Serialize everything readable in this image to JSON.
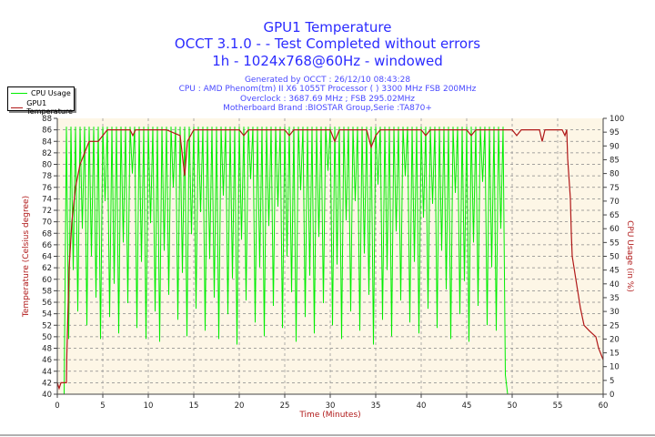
{
  "header": {
    "title": "GPU1 Temperature",
    "subtitle1": "OCCT 3.1.0 -  - Test Completed without errors",
    "subtitle2": "1h - 1024x768@60Hz - windowed",
    "info": [
      "Generated by OCCT : 26/12/10 08:43:28",
      "CPU : AMD Phenom(tm) II X6 1055T Processor (  ) 3300 MHz FSB 200MHz",
      "Overclock : 3687.69 MHz ; FSB 295.02MHz",
      "Motherboard Brand :BIOSTAR Group,Serie :TA870+"
    ]
  },
  "chart_data": {
    "type": "line",
    "xlabel": "Time (Minutes)",
    "ylabel": "Temperature (Celsius degree)",
    "y2label": "CPU Usage (in %)",
    "xlim": [
      0,
      60
    ],
    "ylim": [
      40,
      88
    ],
    "y2lim": [
      0,
      100
    ],
    "xticks": [
      0,
      5,
      10,
      15,
      20,
      25,
      30,
      35,
      40,
      45,
      50,
      55,
      60
    ],
    "yticks": [
      40,
      42,
      44,
      46,
      48,
      50,
      52,
      54,
      56,
      58,
      60,
      62,
      64,
      66,
      68,
      70,
      72,
      74,
      76,
      78,
      80,
      82,
      84,
      86,
      88
    ],
    "y2ticks": [
      0,
      5,
      10,
      15,
      20,
      25,
      30,
      35,
      40,
      45,
      50,
      55,
      60,
      65,
      70,
      75,
      80,
      85,
      90,
      95,
      100
    ],
    "grid": true,
    "legend_position": "top-left",
    "colors": {
      "cpu": "#00ee00",
      "temp": "#b01818",
      "plot_bg": "#fdf6e6",
      "title": "#2b2bff"
    },
    "series": [
      {
        "name": "CPU Usage",
        "axis": "right",
        "x_start": 0,
        "x_step": 0.25,
        "values": [
          0,
          0,
          0,
          0,
          97,
          20,
          97,
          45,
          97,
          30,
          97,
          60,
          97,
          25,
          97,
          50,
          97,
          35,
          97,
          20,
          97,
          70,
          97,
          28,
          97,
          40,
          97,
          22,
          97,
          55,
          97,
          33,
          97,
          80,
          97,
          24,
          97,
          48,
          97,
          20,
          97,
          62,
          97,
          30,
          97,
          19,
          97,
          52,
          97,
          36,
          97,
          75,
          97,
          27,
          97,
          44,
          97,
          21,
          97,
          58,
          97,
          31,
          97,
          66,
          97,
          23,
          97,
          49,
          97,
          35,
          97,
          20,
          97,
          72,
          97,
          29,
          97,
          42,
          97,
          18,
          97,
          56,
          97,
          34,
          97,
          78,
          97,
          26,
          97,
          46,
          97,
          21,
          97,
          61,
          97,
          32,
          97,
          68,
          97,
          24,
          97,
          50,
          97,
          37,
          97,
          19,
          97,
          74,
          97,
          28,
          97,
          43,
          97,
          22,
          97,
          57,
          97,
          33,
          97,
          81,
          97,
          25,
          97,
          47,
          97,
          20,
          97,
          63,
          97,
          30,
          97,
          70,
          97,
          23,
          97,
          51,
          97,
          36,
          97,
          18,
          97,
          76,
          97,
          27,
          97,
          45,
          97,
          21,
          97,
          59,
          97,
          34,
          97,
          79,
          97,
          26,
          97,
          48,
          97,
          22,
          97,
          64,
          97,
          31,
          97,
          69,
          97,
          24,
          97,
          52,
          97,
          38,
          97,
          20,
          97,
          73,
          97,
          29,
          97,
          41,
          97,
          19,
          97,
          55,
          97,
          32,
          97,
          77,
          97,
          25,
          97,
          46,
          97,
          23,
          97,
          60,
          97,
          7,
          0,
          0,
          0,
          0,
          0,
          0,
          0,
          0,
          0,
          0,
          0,
          0,
          0,
          0,
          0,
          0
        ]
      },
      {
        "name": "GPU1 Temperature",
        "axis": "left",
        "points": [
          [
            0,
            42
          ],
          [
            0.2,
            41
          ],
          [
            0.4,
            42
          ],
          [
            1.0,
            42
          ],
          [
            1.05,
            47
          ],
          [
            1.3,
            62
          ],
          [
            1.6,
            70
          ],
          [
            2,
            76
          ],
          [
            2.5,
            80
          ],
          [
            3,
            82
          ],
          [
            3.5,
            84
          ],
          [
            4.5,
            84
          ],
          [
            5,
            85
          ],
          [
            5.5,
            86
          ],
          [
            8,
            86
          ],
          [
            8.3,
            85
          ],
          [
            8.6,
            86
          ],
          [
            12,
            86
          ],
          [
            13.5,
            85
          ],
          [
            14,
            78
          ],
          [
            14.3,
            84
          ],
          [
            15,
            86
          ],
          [
            20,
            86
          ],
          [
            20.5,
            85
          ],
          [
            21,
            86
          ],
          [
            25,
            86
          ],
          [
            25.5,
            85
          ],
          [
            26,
            86
          ],
          [
            30,
            86
          ],
          [
            30.5,
            84
          ],
          [
            31,
            86
          ],
          [
            34,
            86
          ],
          [
            34.5,
            83
          ],
          [
            35,
            85
          ],
          [
            35.5,
            86
          ],
          [
            40,
            86
          ],
          [
            40.5,
            85
          ],
          [
            41,
            86
          ],
          [
            45,
            86
          ],
          [
            45.5,
            85
          ],
          [
            46,
            86
          ],
          [
            50,
            86
          ],
          [
            50.5,
            85
          ],
          [
            51,
            86
          ],
          [
            53,
            86
          ],
          [
            53.3,
            84
          ],
          [
            53.6,
            86
          ],
          [
            55.5,
            86
          ],
          [
            55.8,
            85
          ],
          [
            56,
            86
          ],
          [
            56.1,
            81
          ],
          [
            56.4,
            74
          ],
          [
            56.5,
            68
          ],
          [
            56.6,
            64
          ],
          [
            57,
            60
          ],
          [
            57.5,
            55
          ],
          [
            57.9,
            52
          ],
          [
            58.5,
            51
          ],
          [
            59.2,
            50
          ],
          [
            59.5,
            48
          ],
          [
            60,
            46
          ]
        ]
      }
    ]
  }
}
